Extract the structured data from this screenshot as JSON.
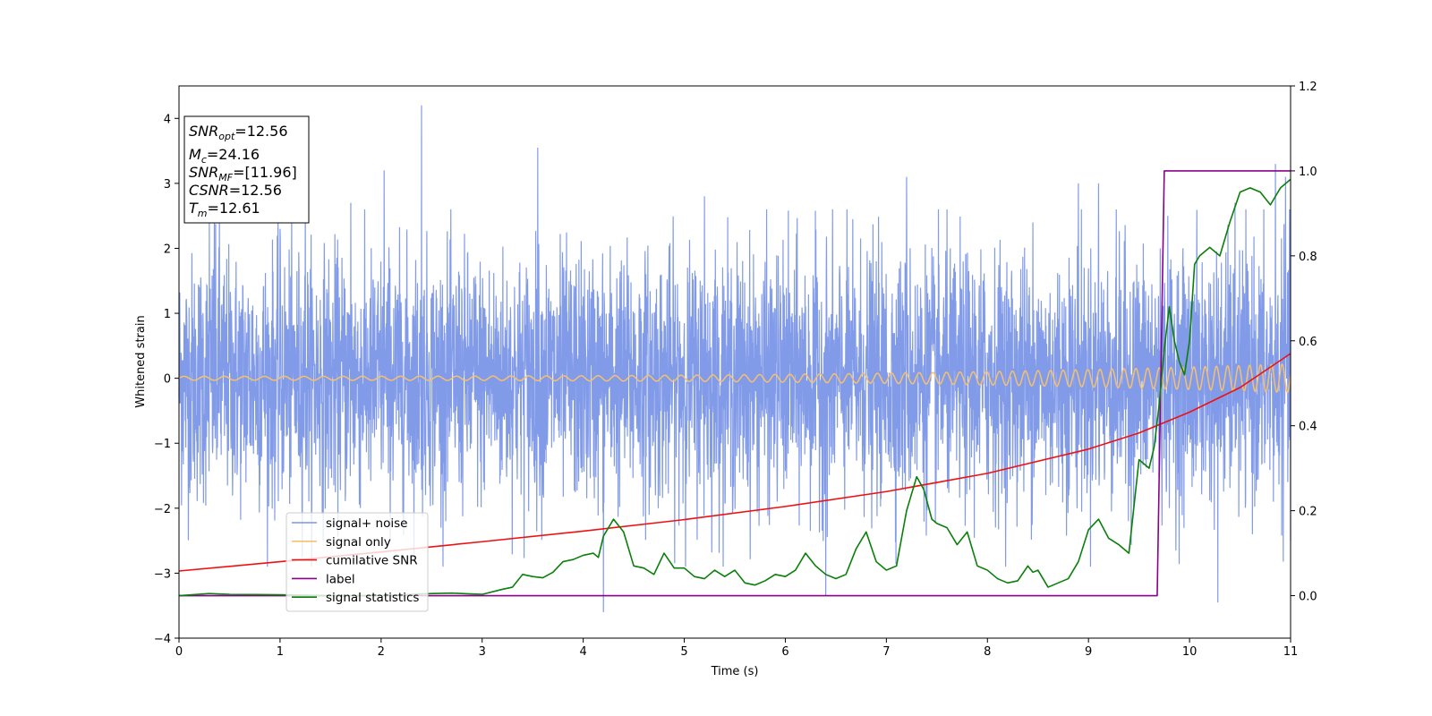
{
  "chart_data": {
    "type": "line",
    "xlabel": "Time (s)",
    "ylabel": "Whitened strain",
    "xlim": [
      0,
      11
    ],
    "ylim": [
      -4,
      4.5
    ],
    "y2lim": [
      -0.1,
      1.2
    ],
    "x_ticks": [
      "0",
      "1",
      "2",
      "3",
      "4",
      "5",
      "6",
      "7",
      "8",
      "9",
      "10",
      "11"
    ],
    "y_ticks": [
      "−4",
      "−3",
      "−2",
      "−1",
      "0",
      "1",
      "2",
      "3",
      "4"
    ],
    "y2_ticks": [
      "0.0",
      "0.2",
      "0.4",
      "0.6",
      "0.8",
      "1.0",
      "1.2"
    ],
    "grid": false,
    "legend_position": "lower-left",
    "info_box": {
      "snr_opt": {
        "sym": "SNR",
        "sub": "opt",
        "val": "=12.56"
      },
      "mc": {
        "sym": "M",
        "sub": "c",
        "val": "=24.16"
      },
      "snr_mf": {
        "sym": "SNR",
        "sub": "MF",
        "val": "=[11.96]"
      },
      "csnr": {
        "sym": "CSNR",
        "sub": "",
        "val": "=12.56"
      },
      "tm": {
        "sym": "T",
        "sub": "m",
        "val": "=12.61"
      }
    },
    "series": [
      {
        "name": "signal+ noise",
        "color": "#7b96e8",
        "axis": "left",
        "description_of_shape": "noise band",
        "envelope": {
          "std": 0.95,
          "mean": 0.0
        },
        "spikes": [
          [
            0.3,
            2.4
          ],
          [
            0.35,
            2.5
          ],
          [
            0.4,
            2.7
          ],
          [
            1.0,
            2.3
          ],
          [
            1.25,
            2.9
          ],
          [
            1.7,
            2.7
          ],
          [
            2.03,
            3.2
          ],
          [
            2.4,
            4.2
          ],
          [
            3.55,
            3.55
          ],
          [
            4.2,
            -3.6
          ],
          [
            5.2,
            2.8
          ],
          [
            6.4,
            -3.35
          ],
          [
            7.2,
            3.1
          ],
          [
            8.45,
            2.4
          ],
          [
            8.9,
            3.0
          ],
          [
            9.1,
            3.0
          ],
          [
            10.28,
            -3.45
          ],
          [
            10.45,
            2.7
          ],
          [
            10.85,
            3.3
          ],
          [
            10.95,
            3.1
          ],
          [
            11.0,
            -2.5
          ]
        ]
      },
      {
        "name": "signal only",
        "color": "#f5c06f",
        "axis": "left",
        "chirp": {
          "amp_start": 0.03,
          "amp_end": 0.22,
          "f_start": 5.0,
          "f_end": 9.5
        }
      },
      {
        "name": "cumilative SNR",
        "color": "#ee1111",
        "axis": "right",
        "x": [
          0,
          1,
          2,
          3,
          4,
          5,
          6,
          7,
          8,
          9,
          9.5,
          10,
          10.5,
          11
        ],
        "y": [
          0.058,
          0.08,
          0.103,
          0.127,
          0.152,
          0.179,
          0.21,
          0.245,
          0.288,
          0.345,
          0.383,
          0.432,
          0.49,
          0.57
        ]
      },
      {
        "name": "label",
        "color": "#8b008b",
        "axis": "right",
        "x": [
          0,
          9.68,
          9.75,
          11
        ],
        "y": [
          0.0,
          0.0,
          1.0,
          1.0
        ]
      },
      {
        "name": "signal statistics",
        "color": "#0a7f0a",
        "axis": "right",
        "x": [
          0,
          0.3,
          0.5,
          1,
          1.5,
          2,
          2.5,
          2.7,
          2.9,
          3.0,
          3.2,
          3.3,
          3.4,
          3.5,
          3.6,
          3.7,
          3.8,
          3.9,
          4.0,
          4.1,
          4.15,
          4.2,
          4.3,
          4.4,
          4.5,
          4.6,
          4.7,
          4.8,
          4.9,
          5.0,
          5.1,
          5.2,
          5.3,
          5.4,
          5.5,
          5.6,
          5.7,
          5.8,
          5.9,
          6.0,
          6.1,
          6.2,
          6.3,
          6.4,
          6.5,
          6.6,
          6.7,
          6.8,
          6.9,
          7.0,
          7.1,
          7.2,
          7.3,
          7.37,
          7.45,
          7.5,
          7.6,
          7.7,
          7.8,
          7.9,
          8.0,
          8.1,
          8.2,
          8.3,
          8.4,
          8.45,
          8.5,
          8.6,
          8.7,
          8.8,
          8.9,
          9.0,
          9.1,
          9.2,
          9.3,
          9.4,
          9.5,
          9.6,
          9.65,
          9.7,
          9.75,
          9.8,
          9.85,
          9.9,
          9.95,
          10.0,
          10.05,
          10.1,
          10.2,
          10.3,
          10.4,
          10.5,
          10.6,
          10.7,
          10.8,
          10.9,
          11.0
        ],
        "y": [
          0.0,
          0.005,
          0.003,
          0.002,
          0.0,
          0.0,
          0.005,
          0.006,
          0.004,
          0.003,
          0.015,
          0.02,
          0.05,
          0.045,
          0.042,
          0.055,
          0.08,
          0.085,
          0.095,
          0.1,
          0.09,
          0.14,
          0.18,
          0.15,
          0.07,
          0.065,
          0.05,
          0.1,
          0.065,
          0.065,
          0.045,
          0.04,
          0.06,
          0.045,
          0.06,
          0.03,
          0.025,
          0.035,
          0.05,
          0.045,
          0.06,
          0.1,
          0.07,
          0.05,
          0.04,
          0.05,
          0.11,
          0.15,
          0.08,
          0.06,
          0.07,
          0.2,
          0.28,
          0.25,
          0.18,
          0.17,
          0.16,
          0.12,
          0.15,
          0.07,
          0.06,
          0.04,
          0.03,
          0.035,
          0.07,
          0.055,
          0.06,
          0.02,
          0.03,
          0.04,
          0.08,
          0.155,
          0.18,
          0.135,
          0.12,
          0.1,
          0.32,
          0.3,
          0.35,
          0.45,
          0.58,
          0.68,
          0.6,
          0.55,
          0.52,
          0.6,
          0.78,
          0.8,
          0.82,
          0.8,
          0.88,
          0.95,
          0.96,
          0.95,
          0.92,
          0.96,
          0.98
        ]
      }
    ]
  }
}
